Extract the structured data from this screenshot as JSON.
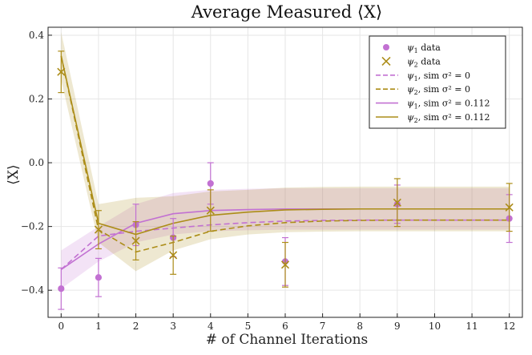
{
  "chart_data": {
    "type": "line",
    "title": "Average Measured ⟨X⟩",
    "xlabel": "# of Channel Iterations",
    "ylabel": "⟨X⟩",
    "xlim": [
      -0.35,
      12.35
    ],
    "ylim": [
      -0.485,
      0.425
    ],
    "xticks": [
      0,
      1,
      2,
      3,
      4,
      5,
      6,
      7,
      8,
      9,
      10,
      11,
      12
    ],
    "xtick_labels": [
      "0",
      "1",
      "2",
      "3",
      "4",
      "5",
      "6",
      "7",
      "8",
      "9",
      "10",
      "11",
      "12"
    ],
    "yticks": [
      -0.4,
      -0.2,
      0.0,
      0.2,
      0.4
    ],
    "ytick_labels": [
      "−0.4",
      "−0.2",
      "0.0",
      "0.2",
      "0.4"
    ],
    "grid": true,
    "legend_position": "top-right",
    "colors": {
      "psi1": "#c271d2",
      "psi2": "#ac8d18"
    },
    "series": [
      {
        "name": "ψ1 data",
        "kind": "scatter",
        "marker": "circle",
        "color": "#c271d2",
        "x": [
          0,
          1,
          2,
          3,
          4,
          6,
          9,
          12
        ],
        "y": [
          -0.395,
          -0.36,
          -0.195,
          -0.235,
          -0.065,
          -0.31,
          -0.13,
          -0.175
        ],
        "err": [
          0.065,
          0.06,
          0.065,
          0.06,
          0.065,
          0.075,
          0.06,
          0.075
        ]
      },
      {
        "name": "ψ2 data",
        "kind": "scatter",
        "marker": "x",
        "color": "#ac8d18",
        "x": [
          0,
          1,
          2,
          3,
          4,
          6,
          9,
          12
        ],
        "y": [
          0.285,
          -0.21,
          -0.245,
          -0.29,
          -0.15,
          -0.32,
          -0.125,
          -0.14
        ],
        "err": [
          0.065,
          0.06,
          0.06,
          0.06,
          0.065,
          0.07,
          0.075,
          0.075
        ]
      },
      {
        "name": "ψ1, sim σ² = 0",
        "kind": "line",
        "dash": true,
        "color": "#c271d2",
        "x": [
          0,
          1,
          2,
          3,
          4,
          5,
          6,
          7,
          8,
          9,
          10,
          11,
          12
        ],
        "y": [
          -0.335,
          -0.23,
          -0.215,
          -0.205,
          -0.195,
          -0.188,
          -0.183,
          -0.181,
          -0.18,
          -0.18,
          -0.18,
          -0.18,
          -0.18
        ]
      },
      {
        "name": "ψ2, sim σ² = 0",
        "kind": "line",
        "dash": true,
        "color": "#ac8d18",
        "x": [
          0,
          1,
          2,
          3,
          4,
          5,
          6,
          7,
          8,
          9,
          10,
          11,
          12
        ],
        "y": [
          0.335,
          -0.21,
          -0.28,
          -0.25,
          -0.215,
          -0.198,
          -0.188,
          -0.183,
          -0.181,
          -0.18,
          -0.18,
          -0.18,
          -0.18
        ]
      },
      {
        "name": "ψ1, sim σ² = 0.112",
        "kind": "line",
        "dash": false,
        "color": "#c271d2",
        "x": [
          0,
          1,
          2,
          3,
          4,
          5,
          6,
          7,
          8,
          9,
          10,
          11,
          12
        ],
        "y": [
          -0.335,
          -0.255,
          -0.19,
          -0.16,
          -0.15,
          -0.147,
          -0.145,
          -0.145,
          -0.145,
          -0.145,
          -0.145,
          -0.145,
          -0.145
        ],
        "band": [
          0.06,
          0.055,
          0.06,
          0.065,
          0.065,
          0.065,
          0.065,
          0.065,
          0.065,
          0.065,
          0.065,
          0.065,
          0.065
        ]
      },
      {
        "name": "ψ2, sim σ² = 0.112",
        "kind": "line",
        "dash": false,
        "color": "#ac8d18",
        "x": [
          0,
          1,
          2,
          3,
          4,
          5,
          6,
          7,
          8,
          9,
          10,
          11,
          12
        ],
        "y": [
          0.335,
          -0.19,
          -0.225,
          -0.19,
          -0.165,
          -0.155,
          -0.148,
          -0.146,
          -0.145,
          -0.145,
          -0.145,
          -0.145,
          -0.145
        ],
        "band": [
          0.075,
          0.06,
          0.115,
          0.085,
          0.075,
          0.07,
          0.07,
          0.07,
          0.07,
          0.07,
          0.07,
          0.07,
          0.07
        ]
      }
    ],
    "legend": [
      {
        "sym": "ψ",
        "sub": "1",
        "rest": " data",
        "style": "circle",
        "color": "#c271d2"
      },
      {
        "sym": "ψ",
        "sub": "2",
        "rest": " data",
        "style": "x",
        "color": "#ac8d18"
      },
      {
        "sym": "ψ",
        "sub": "1",
        "rest": ", sim σ² = 0",
        "style": "dash",
        "color": "#c271d2"
      },
      {
        "sym": "ψ",
        "sub": "2",
        "rest": ", sim σ² = 0",
        "style": "dash",
        "color": "#ac8d18"
      },
      {
        "sym": "ψ",
        "sub": "1",
        "rest": ", sim σ² = 0.112",
        "style": "solid",
        "color": "#c271d2"
      },
      {
        "sym": "ψ",
        "sub": "2",
        "rest": ", sim σ² = 0.112",
        "style": "solid",
        "color": "#ac8d18"
      }
    ]
  }
}
